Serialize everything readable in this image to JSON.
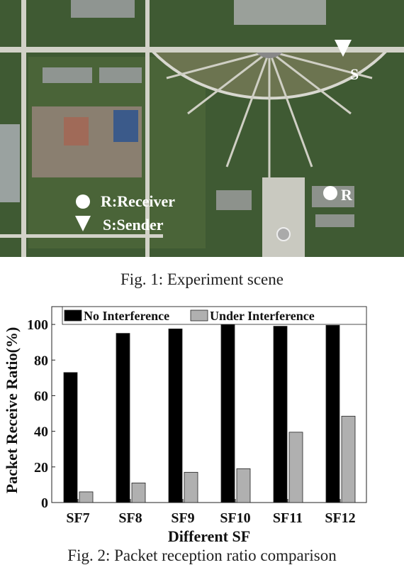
{
  "figure1": {
    "labels": {
      "receiver": "R:Receiver",
      "sender": "S:Sender",
      "s_marker": "S",
      "r_marker": "R"
    },
    "caption": "Fig. 1: Experiment scene"
  },
  "chart_data": {
    "type": "bar",
    "categories": [
      "SF7",
      "SF8",
      "SF9",
      "SF10",
      "SF11",
      "SF12"
    ],
    "series": [
      {
        "name": "No Interference",
        "color": "#000000",
        "values": [
          73,
          95,
          97.5,
          100,
          99,
          99.5
        ]
      },
      {
        "name": "Under Interference",
        "color": "#b0b0b0",
        "values": [
          6,
          11,
          17,
          19,
          39.5,
          48.5
        ]
      }
    ],
    "ylim": [
      0,
      110
    ],
    "yticks": [
      0,
      20,
      40,
      60,
      80,
      100
    ],
    "x_label": "Different SF",
    "y_label": "Packet Receive Ratio(%)",
    "legend": "top",
    "grid": false,
    "caption": "Fig. 2: Packet reception ratio comparison"
  }
}
